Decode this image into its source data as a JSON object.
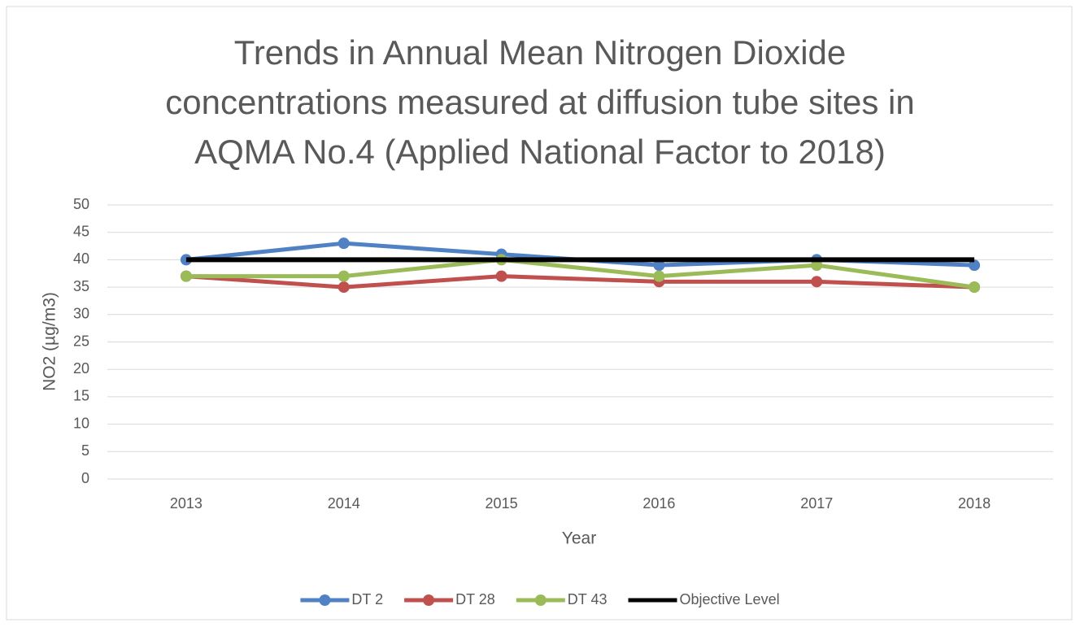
{
  "chart_data": {
    "type": "line",
    "title": [
      "Trends in Annual Mean Nitrogen Dioxide",
      "concentrations measured at diffusion tube sites in",
      "AQMA No.4 (Applied National Factor to 2018)"
    ],
    "x_label": "Year",
    "y_label": "NO2 (µg/m3)",
    "categories": [
      "2013",
      "2014",
      "2015",
      "2016",
      "2017",
      "2018"
    ],
    "series": [
      {
        "name": "DT 2",
        "color": "#4f81c4",
        "markers": true,
        "values": [
          40,
          43,
          41,
          39,
          40,
          39
        ]
      },
      {
        "name": "DT 28",
        "color": "#c0504d",
        "markers": true,
        "values": [
          37,
          35,
          37,
          36,
          36,
          35
        ]
      },
      {
        "name": "DT 43",
        "color": "#9bbb59",
        "markers": true,
        "values": [
          37,
          37,
          40,
          37,
          39,
          35
        ]
      },
      {
        "name": "Objective Level",
        "color": "#000000",
        "markers": false,
        "values": [
          40,
          40,
          40,
          40,
          40,
          40
        ]
      }
    ],
    "ylim": [
      0,
      50
    ],
    "yticks": [
      0,
      5,
      10,
      15,
      20,
      25,
      30,
      35,
      40,
      45,
      50
    ],
    "grid": true,
    "legend": "bottom"
  }
}
